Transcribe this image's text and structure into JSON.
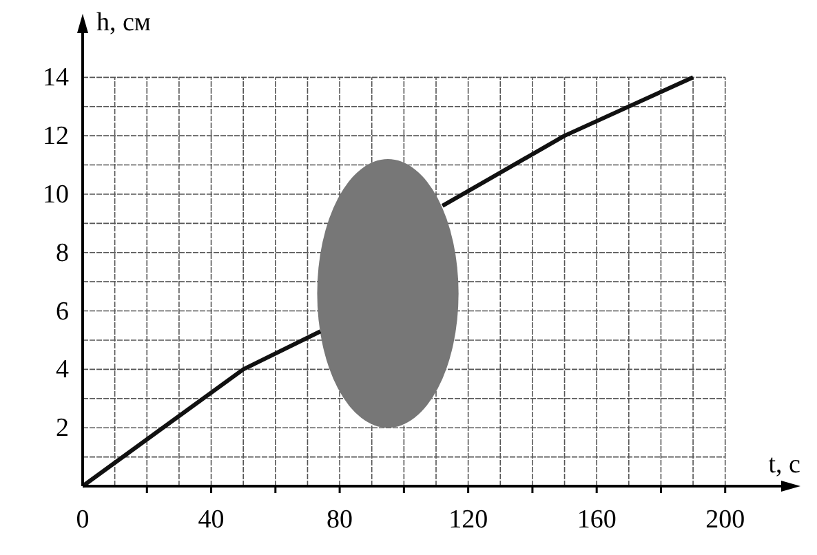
{
  "chart_data": {
    "type": "line",
    "xlabel": "t, с",
    "ylabel": "h, см",
    "x": [
      0,
      50,
      74,
      95,
      112,
      150,
      190
    ],
    "series": [
      {
        "color": "#111111",
        "values": [
          0,
          4,
          5.3,
          null,
          9.6,
          12,
          14
        ]
      }
    ],
    "xlim": [
      0,
      220
    ],
    "ylim": [
      0,
      15.8
    ],
    "xticks": [
      {
        "value": 0,
        "label": "0"
      },
      {
        "value": 10,
        "label": null
      },
      {
        "value": 20,
        "label": null
      },
      {
        "value": 30,
        "label": null
      },
      40,
      {
        "value": 50,
        "label": null
      },
      {
        "value": 60,
        "label": null
      },
      {
        "value": 70,
        "label": null
      },
      80,
      {
        "value": 90,
        "label": null
      },
      {
        "value": 100,
        "label": null
      },
      {
        "value": 110,
        "label": null
      },
      120,
      {
        "value": 130,
        "label": null
      },
      {
        "value": 140,
        "label": null
      },
      {
        "value": 150,
        "label": null
      },
      160,
      {
        "value": 170,
        "label": null
      },
      {
        "value": 180,
        "label": null
      },
      {
        "value": 190,
        "label": null
      },
      200
    ],
    "yticks": [
      {
        "value": 1,
        "label": null
      },
      2,
      {
        "value": 3,
        "label": null
      },
      4,
      {
        "value": 5,
        "label": null
      },
      6,
      {
        "value": 7,
        "label": null
      },
      8,
      {
        "value": 9,
        "label": null
      },
      10,
      {
        "value": 11,
        "label": null
      },
      12,
      {
        "value": 13,
        "label": null
      },
      14
    ],
    "grid": true,
    "marker": "none",
    "line_style": "solid"
  }
}
